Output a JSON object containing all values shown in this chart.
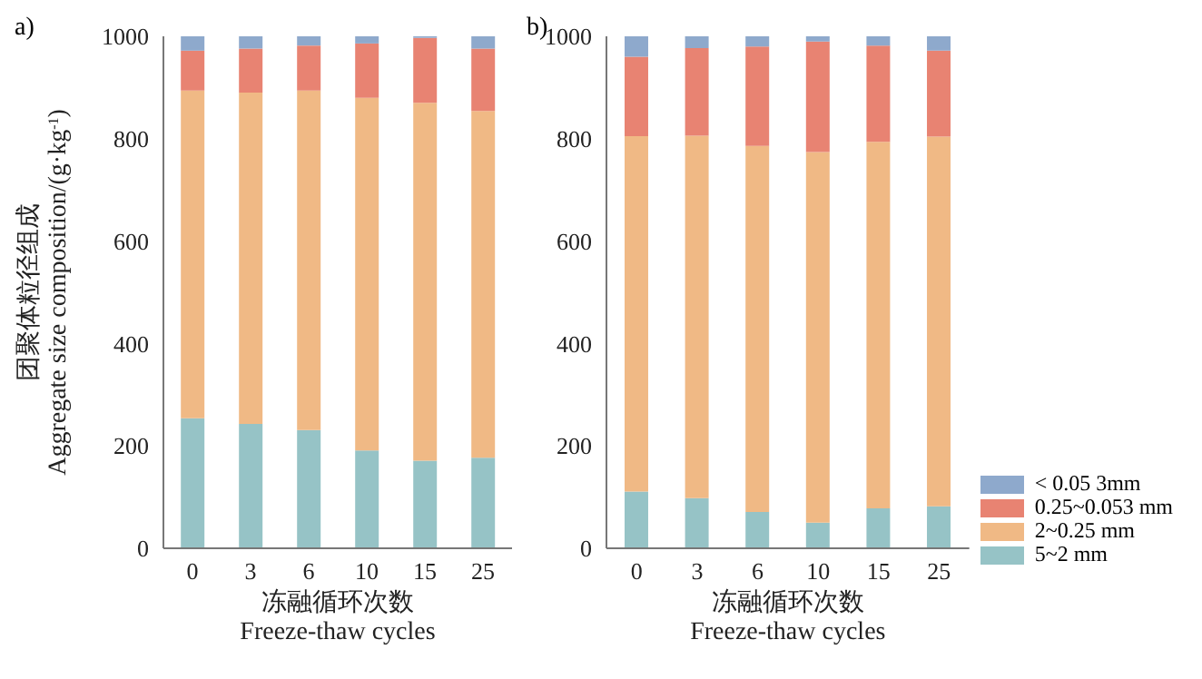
{
  "chart_data": [
    {
      "type": "bar",
      "title": "a)",
      "xlabel": "冻融循环次数\nFreeze-thaw cycles",
      "ylabel": "团聚体粒径组成\nAggregate size composition/(g·kg$^{-1}$)",
      "categories": [
        "0",
        "3",
        "6",
        "10",
        "15",
        "25"
      ],
      "stacked": true,
      "ylim": [
        0,
        1000
      ],
      "yticks": [
        0,
        200,
        400,
        600,
        800,
        1000
      ],
      "legend": false,
      "series": [
        {
          "color": "#96c3c6",
          "values": [
            254,
            243,
            231,
            191,
            171,
            177
          ]
        },
        {
          "color": "#f0b985",
          "values": [
            640,
            647,
            663,
            689,
            699,
            677
          ]
        },
        {
          "color": "#e88372",
          "values": [
            78,
            86,
            88,
            106,
            127,
            122
          ]
        },
        {
          "color": "#8ea9cc",
          "values": [
            28,
            24,
            18,
            14,
            3,
            24
          ]
        }
      ]
    },
    {
      "type": "bar",
      "title": "b)",
      "xlabel": "冻融循环次数\nFreeze-thaw cycles",
      "categories": [
        "0",
        "3",
        "6",
        "10",
        "15",
        "25"
      ],
      "stacked": true,
      "ylim": [
        0,
        1000
      ],
      "yticks": [
        0,
        200,
        400,
        600,
        800,
        1000
      ],
      "legend": "bottom right",
      "series": [
        {
          "name": "5~2 mm",
          "color": "#96c3c6",
          "values": [
            111,
            98,
            71,
            50,
            78,
            82
          ]
        },
        {
          "name": "2~0.25 mm",
          "color": "#f0b985",
          "values": [
            694,
            708,
            715,
            724,
            716,
            722
          ]
        },
        {
          "name": "0.25~0.053 mm",
          "color": "#e88372",
          "values": [
            155,
            171,
            194,
            216,
            188,
            168
          ]
        },
        {
          "name": "< 0.05 3mm",
          "color": "#8ea9cc",
          "values": [
            40,
            23,
            20,
            10,
            18,
            28
          ]
        }
      ]
    }
  ]
}
